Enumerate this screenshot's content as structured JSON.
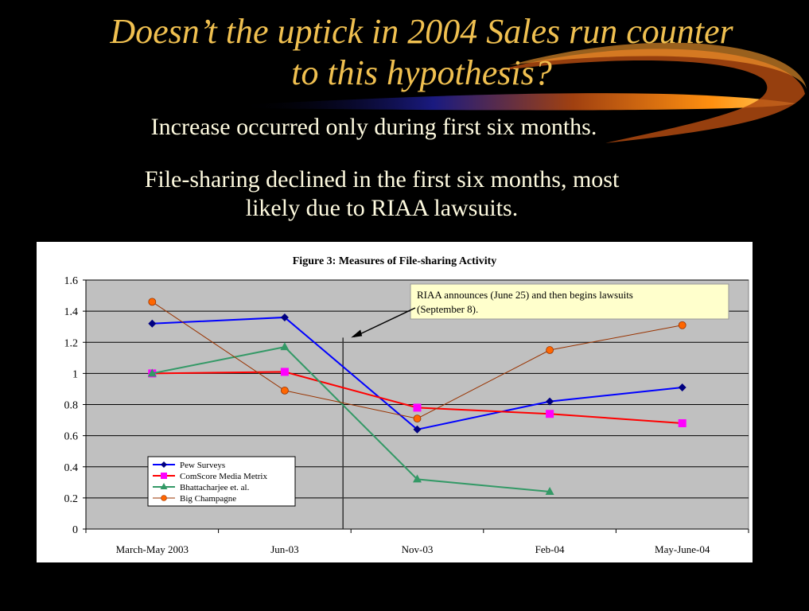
{
  "slide": {
    "title_line1": "Doesn’t the uptick in 2004 Sales run counter",
    "title_line2": "to this hypothesis?",
    "bullet1": "Increase occurred only during first six months.",
    "bullet2_line1": "File-sharing declined in the first six months, most",
    "bullet2_line2": "likely due to RIAA lawsuits."
  },
  "chart_data": {
    "type": "line",
    "title": "Figure 3: Measures of File-sharing Activity",
    "categories": [
      "March-May 2003",
      "Jun-03",
      "Nov-03",
      "Feb-04",
      "May-June-04"
    ],
    "ylim": [
      0,
      1.6
    ],
    "yticks": [
      "0",
      "0.2",
      "0.4",
      "0.6",
      "0.8",
      "1",
      "1.2",
      "1.4",
      "1.6"
    ],
    "grid": true,
    "legend_position": "bottom-left",
    "series": [
      {
        "name": "Pew Surveys",
        "values": [
          1.32,
          1.36,
          0.64,
          0.82,
          0.91
        ],
        "color": "#0000ff",
        "marker": "diamond",
        "marker_color": "#000080"
      },
      {
        "name": "ComScore Media Metrix",
        "values": [
          1.0,
          1.01,
          0.78,
          0.74,
          0.68
        ],
        "color": "#ff0000",
        "marker": "square",
        "marker_color": "#ff00ff"
      },
      {
        "name": "Bhattacharjee et. al.",
        "values": [
          1.0,
          1.17,
          0.32,
          0.24,
          null
        ],
        "color": "#339966",
        "marker": "triangle",
        "marker_color": "#339966"
      },
      {
        "name": "Big Champagne",
        "values": [
          1.46,
          0.89,
          0.71,
          1.15,
          1.31
        ],
        "color": "#993300",
        "marker": "circle",
        "marker_color": "#ff6600"
      }
    ],
    "annotation": {
      "line1": "RIAA announces (June 25) and then begins lawsuits",
      "line2": "(September 8)."
    },
    "colors": {
      "plot_bg": "#c0c0c0",
      "annotation_bg": "#ffffcc",
      "title_text": "#f0c050"
    }
  }
}
